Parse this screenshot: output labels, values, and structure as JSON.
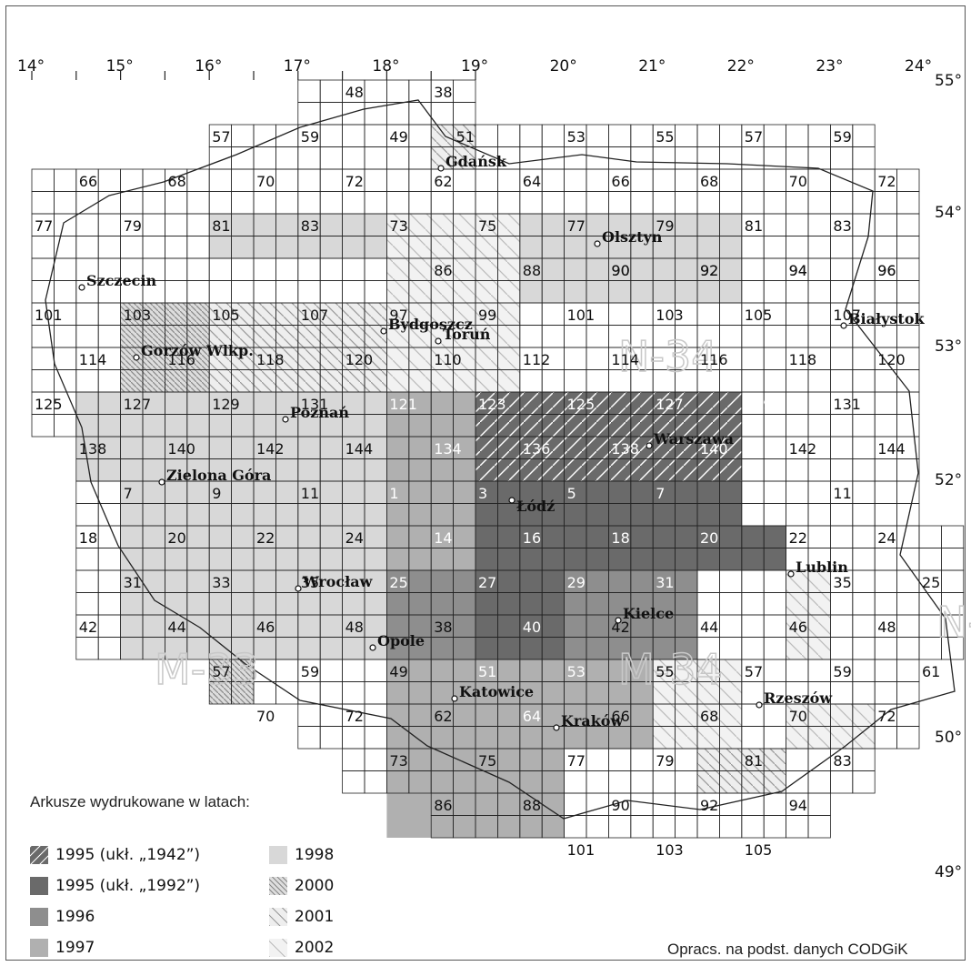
{
  "map": {
    "longitudes": [
      "14°",
      "15°",
      "16°",
      "17°",
      "18°",
      "19°",
      "20°",
      "21°",
      "22°",
      "23°",
      "24°"
    ],
    "latitudes": [
      "55°",
      "54°",
      "53°",
      "52°",
      "50°",
      "49°"
    ],
    "zones": [
      "M-33",
      "M-34",
      "N-34",
      "N-35"
    ],
    "cities": [
      "Gdańsk",
      "Olsztyn",
      "Szczecin",
      "Bydgoszcz",
      "Toruń",
      "Białystok",
      "Gorzów Wlkp.",
      "Poznań",
      "Warszawa",
      "Zielona Góra",
      "Łódź",
      "Lublin",
      "Wrocław",
      "Opole",
      "Kielce",
      "Katowice",
      "Kraków",
      "Rzeszów"
    ],
    "sheet_numbers": [
      "48",
      "38",
      "57",
      "59",
      "49",
      "51",
      "53",
      "55",
      "57",
      "59",
      "66",
      "68",
      "70",
      "72",
      "62",
      "64",
      "66",
      "68",
      "70",
      "72",
      "77",
      "79",
      "81",
      "83",
      "73",
      "75",
      "77",
      "79",
      "81",
      "83",
      "90",
      "92",
      "94",
      "96",
      "86",
      "88",
      "90",
      "92",
      "94",
      "96",
      "101",
      "103",
      "105",
      "107",
      "97",
      "99",
      "101",
      "103",
      "105",
      "107",
      "114",
      "116",
      "118",
      "120",
      "110",
      "112",
      "114",
      "116",
      "118",
      "120",
      "125",
      "127",
      "129",
      "131",
      "121",
      "123",
      "125",
      "127",
      "129",
      "131",
      "138",
      "140",
      "142",
      "144",
      "134",
      "136",
      "138",
      "140",
      "142",
      "144",
      "7",
      "9",
      "11",
      "1",
      "3",
      "5",
      "7",
      "9",
      "11",
      "18",
      "20",
      "22",
      "24",
      "14",
      "16",
      "18",
      "20",
      "22",
      "24",
      "31",
      "33",
      "35",
      "25",
      "27",
      "29",
      "31",
      "33",
      "35",
      "25",
      "42",
      "44",
      "46",
      "48",
      "38",
      "40",
      "42",
      "44",
      "46",
      "48",
      "57",
      "59",
      "49",
      "51",
      "53",
      "55",
      "57",
      "59",
      "61",
      "70",
      "72",
      "62",
      "64",
      "66",
      "68",
      "70",
      "72",
      "73",
      "75",
      "77",
      "79",
      "81",
      "83",
      "86",
      "88",
      "90",
      "92",
      "94",
      "101",
      "103",
      "105"
    ]
  },
  "legend": {
    "title": "Arkusze wydrukowane w latach:",
    "items": [
      {
        "label": "1995 (ukł. „1942”)",
        "swatch": "dark-hatched",
        "color": "#6a6a6a"
      },
      {
        "label": "1995 (ukł. „1992”)",
        "swatch": "dark",
        "color": "#6a6a6a"
      },
      {
        "label": "1996",
        "swatch": "medium",
        "color": "#8e8e8e"
      },
      {
        "label": "1997",
        "swatch": "light",
        "color": "#b0b0b0"
      },
      {
        "label": "1998",
        "swatch": "pale",
        "color": "#d8d8d8"
      },
      {
        "label": "2000",
        "swatch": "dense-hatch",
        "color": "#999999"
      },
      {
        "label": "2001",
        "swatch": "medium-hatch",
        "color": "#999999"
      },
      {
        "label": "2002",
        "swatch": "sparse-hatch",
        "color": "#999999"
      }
    ]
  },
  "credit": "Opracs. na podst. danych CODGiK"
}
